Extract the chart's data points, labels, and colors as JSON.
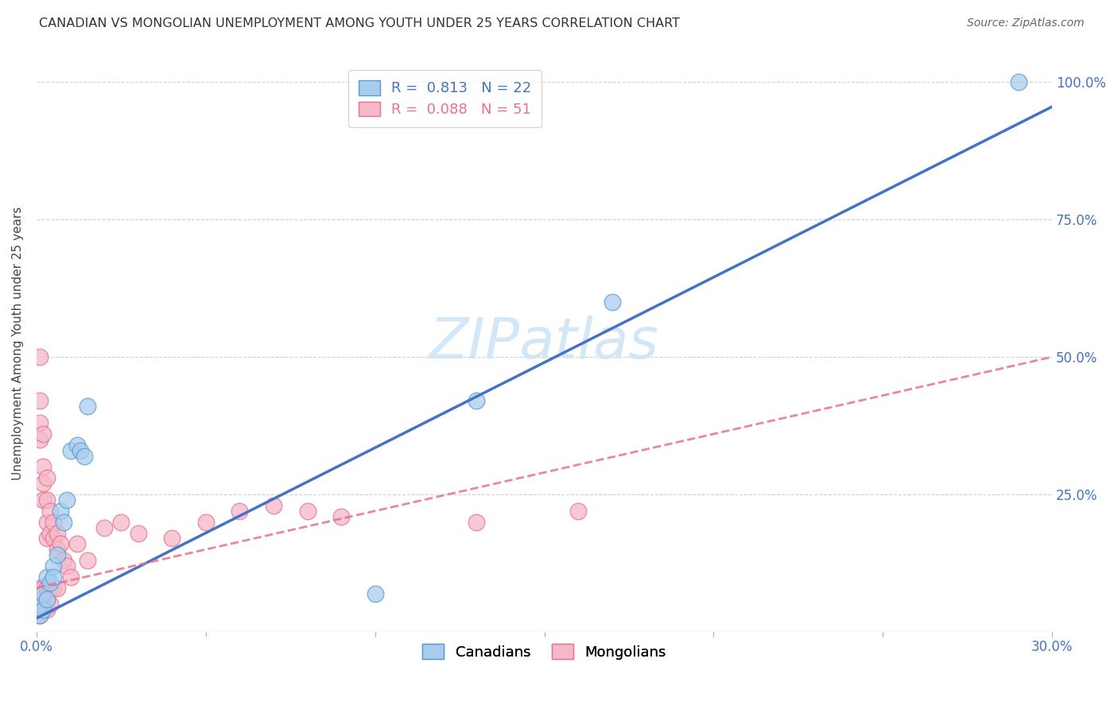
{
  "title": "CANADIAN VS MONGOLIAN UNEMPLOYMENT AMONG YOUTH UNDER 25 YEARS CORRELATION CHART",
  "source": "Source: ZipAtlas.com",
  "ylabel": "Unemployment Among Youth under 25 years",
  "xlim": [
    0.0,
    0.3
  ],
  "ylim": [
    0.0,
    1.05
  ],
  "canadians_R": 0.813,
  "canadians_N": 22,
  "mongolians_R": 0.088,
  "mongolians_N": 51,
  "canadian_color": "#A8CDEC",
  "mongolian_color": "#F5B8C8",
  "canadian_edge_color": "#5B9BD5",
  "mongolian_edge_color": "#E87090",
  "canadian_line_color": "#4472C4",
  "mongolian_line_color": "#E87090",
  "canadians_x": [
    0.001,
    0.001,
    0.002,
    0.002,
    0.003,
    0.003,
    0.004,
    0.005,
    0.005,
    0.006,
    0.007,
    0.008,
    0.009,
    0.01,
    0.012,
    0.013,
    0.014,
    0.015,
    0.1,
    0.13,
    0.17,
    0.29
  ],
  "canadians_y": [
    0.03,
    0.05,
    0.04,
    0.07,
    0.06,
    0.1,
    0.09,
    0.12,
    0.1,
    0.14,
    0.22,
    0.2,
    0.24,
    0.33,
    0.34,
    0.33,
    0.32,
    0.41,
    0.07,
    0.42,
    0.6,
    1.0
  ],
  "mongolians_x": [
    0.0005,
    0.0005,
    0.001,
    0.001,
    0.001,
    0.001,
    0.001,
    0.001,
    0.001,
    0.001,
    0.002,
    0.002,
    0.002,
    0.002,
    0.002,
    0.002,
    0.002,
    0.003,
    0.003,
    0.003,
    0.003,
    0.003,
    0.003,
    0.003,
    0.004,
    0.004,
    0.004,
    0.004,
    0.005,
    0.005,
    0.005,
    0.006,
    0.006,
    0.006,
    0.007,
    0.008,
    0.009,
    0.01,
    0.012,
    0.015,
    0.02,
    0.025,
    0.03,
    0.04,
    0.05,
    0.06,
    0.07,
    0.08,
    0.09,
    0.13,
    0.16
  ],
  "mongolians_y": [
    0.05,
    0.03,
    0.5,
    0.42,
    0.38,
    0.35,
    0.08,
    0.06,
    0.04,
    0.03,
    0.36,
    0.3,
    0.27,
    0.24,
    0.08,
    0.06,
    0.04,
    0.28,
    0.24,
    0.2,
    0.17,
    0.08,
    0.06,
    0.04,
    0.22,
    0.18,
    0.08,
    0.05,
    0.2,
    0.17,
    0.08,
    0.18,
    0.15,
    0.08,
    0.16,
    0.13,
    0.12,
    0.1,
    0.16,
    0.13,
    0.19,
    0.2,
    0.18,
    0.17,
    0.2,
    0.22,
    0.23,
    0.22,
    0.21,
    0.2,
    0.22
  ],
  "background_color": "#FFFFFF",
  "grid_color": "#CCCCCC",
  "watermark_color": "#D0E5F5"
}
